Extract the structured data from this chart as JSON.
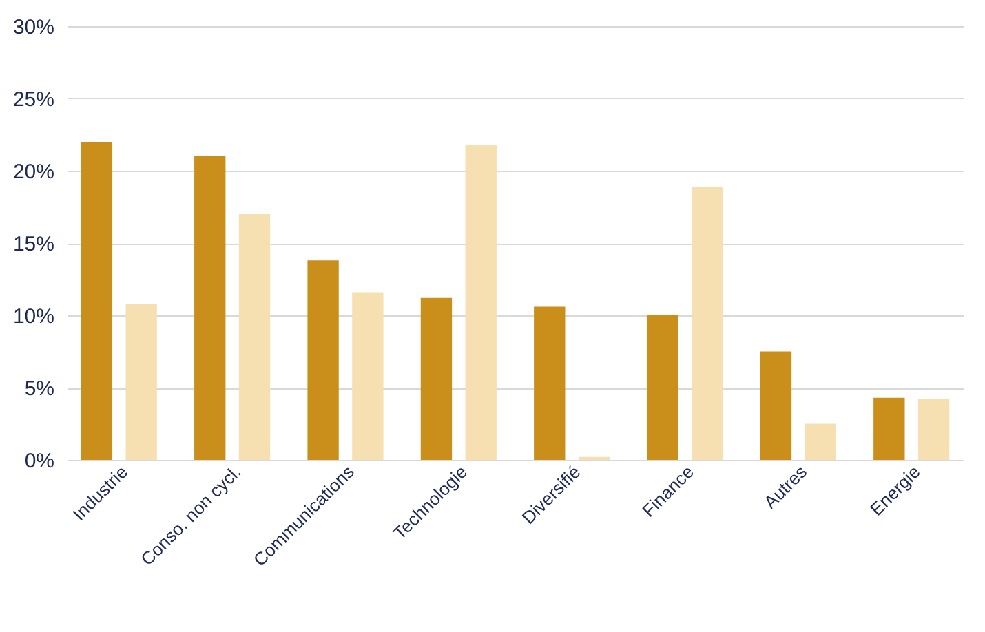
{
  "chart_data": {
    "type": "bar",
    "categories": [
      "Industrie",
      "Conso. non cycl.",
      "Communications",
      "Technologie",
      "Diversifié",
      "Finance",
      "Autres",
      "Energie"
    ],
    "series": [
      {
        "color": "#c98f1a",
        "values": [
          22,
          21,
          13.8,
          11.2,
          10.6,
          10,
          7.5,
          4.3
        ]
      },
      {
        "color": "#f6dfb0",
        "values": [
          10.8,
          17,
          11.6,
          21.8,
          0.2,
          18.9,
          2.5,
          4.2
        ]
      }
    ],
    "ylim": [
      0,
      30
    ],
    "yticks": [
      {
        "value": 0,
        "label": "0%"
      },
      {
        "value": 5,
        "label": "5%"
      },
      {
        "value": 10,
        "label": "10%"
      },
      {
        "value": 15,
        "label": "15%"
      },
      {
        "value": 20,
        "label": "20%"
      },
      {
        "value": 25,
        "label": "25%"
      },
      {
        "value": 30,
        "label": "30%"
      }
    ],
    "grid": "y"
  }
}
